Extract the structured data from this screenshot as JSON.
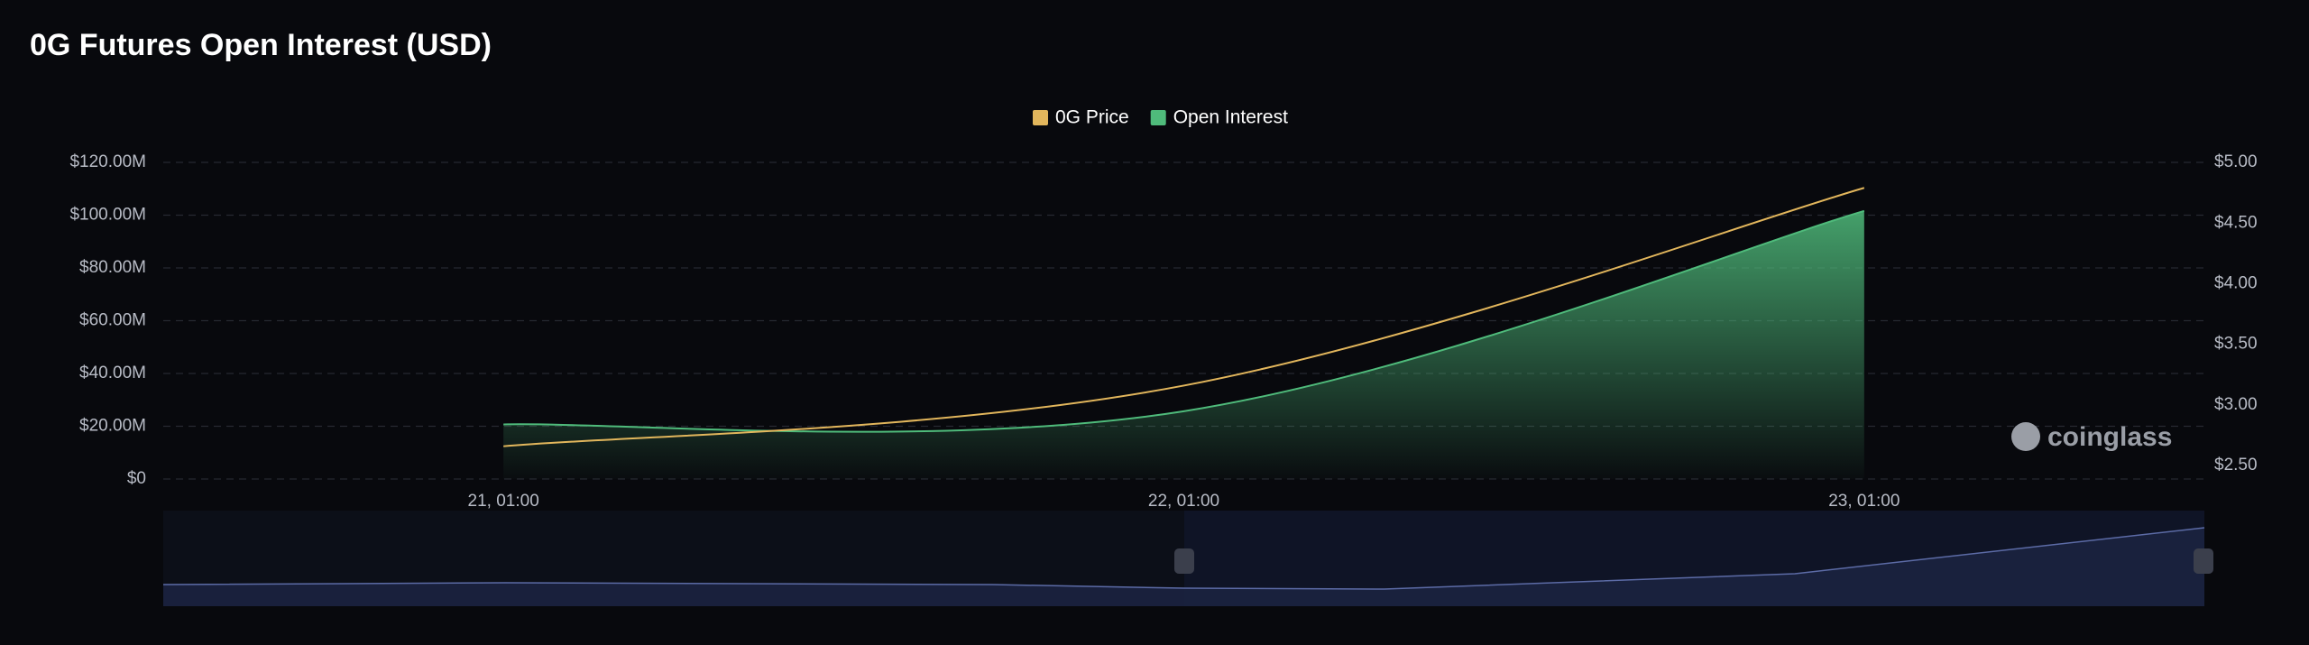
{
  "chart_data": {
    "type": "line-area",
    "title": "0G Futures Open Interest (USD)",
    "watermark": "coinglass",
    "categories": [
      "21, 01:00",
      "22, 01:00",
      "23, 01:00"
    ],
    "series": [
      {
        "name": "0G Price",
        "color": "#e2b65c",
        "axis": "y2",
        "kind": "line",
        "values": [
          2.66,
          3.16,
          4.79
        ]
      },
      {
        "name": "Open Interest",
        "color": "#4fbb7b",
        "axis": "y",
        "kind": "area",
        "values": [
          20700000,
          25700000,
          101600000
        ]
      }
    ],
    "ylim": [
      0,
      120000000
    ],
    "yticks": [
      {
        "value": 0,
        "label": "$0"
      },
      {
        "value": 20000000,
        "label": "$20.00M"
      },
      {
        "value": 40000000,
        "label": "$40.00M"
      },
      {
        "value": 60000000,
        "label": "$60.00M"
      },
      {
        "value": 80000000,
        "label": "$80.00M"
      },
      {
        "value": 100000000,
        "label": "$100.00M"
      },
      {
        "value": 120000000,
        "label": "$120.00M"
      }
    ],
    "y2lim": [
      2.39,
      5.0
    ],
    "y2ticks": [
      {
        "value": 2.5,
        "label": "$2.50"
      },
      {
        "value": 3.0,
        "label": "$3.00"
      },
      {
        "value": 3.5,
        "label": "$3.50"
      },
      {
        "value": 4.0,
        "label": "$4.00"
      },
      {
        "value": 4.5,
        "label": "$4.50"
      },
      {
        "value": 5.0,
        "label": "$5.00"
      }
    ],
    "grid": true,
    "legend": "top"
  }
}
